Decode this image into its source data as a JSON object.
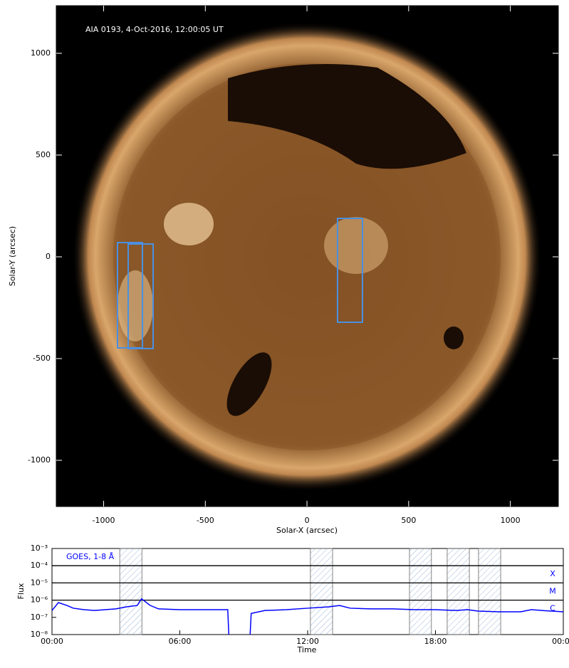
{
  "chart_data": [
    {
      "type": "image",
      "annotation": "AIA 0193, 4-Oct-2016, 12:00:05 UT",
      "xlabel": "Solar-X (arcsec)",
      "ylabel": "Solar-Y (arcsec)",
      "xlim": [
        -1233,
        1236
      ],
      "ylim": [
        -1227,
        1234
      ],
      "xticks": [
        -1000,
        -500,
        0,
        500,
        1000
      ],
      "yticks": [
        -1000,
        -500,
        0,
        500,
        1000
      ]
    },
    {
      "type": "line",
      "xlabel": "Time",
      "ylabel": "Flux",
      "ylog": true,
      "xlim": [
        0,
        24
      ],
      "ylim": [
        1e-08,
        0.001
      ],
      "xticks": [
        {
          "value": 0,
          "label": "00:00"
        },
        {
          "value": 6,
          "label": "06:00"
        },
        {
          "value": 12,
          "label": "12:00"
        },
        {
          "value": 18,
          "label": "18:00"
        },
        {
          "value": 24,
          "label": "00:00"
        }
      ],
      "yticks": [
        {
          "value": 1e-08,
          "label": "10⁻⁸"
        },
        {
          "value": 1e-07,
          "label": "10⁻⁷"
        },
        {
          "value": 1e-06,
          "label": "10⁻⁶"
        },
        {
          "value": 1e-05,
          "label": "10⁻⁵"
        },
        {
          "value": 0.0001,
          "label": "10⁻⁴"
        },
        {
          "value": 0.001,
          "label": "10⁻³"
        }
      ],
      "class_lines": [
        {
          "value": 0.0001,
          "label": "X"
        },
        {
          "value": 1e-05,
          "label": "M"
        },
        {
          "value": 1e-06,
          "label": "C"
        }
      ],
      "intervals": [
        [
          3.18,
          4.22
        ],
        [
          12.13,
          13.17
        ],
        [
          16.78,
          17.81
        ],
        [
          18.55,
          19.59
        ],
        [
          20.02,
          21.06
        ]
      ],
      "x": [
        0,
        0.3,
        0.7,
        1,
        1.5,
        2,
        2.5,
        3,
        3.5,
        4,
        4.2,
        4.6,
        5,
        6,
        7,
        8,
        8.25,
        8.3,
        8.35,
        9.3,
        9.35,
        10,
        11,
        12,
        13,
        13.5,
        14,
        15,
        16,
        17,
        18,
        19,
        19.5,
        20,
        21,
        22,
        22.5,
        23,
        24
      ],
      "series": [
        {
          "name": "GOES, 1-8 Å",
          "color": "#0000ff",
          "values": [
            2.5e-07,
            7.2e-07,
            4.9e-07,
            3.4e-07,
            2.8e-07,
            2.5e-07,
            2.8e-07,
            3.1e-07,
            4.1e-07,
            4.9e-07,
            1.2e-06,
            5e-07,
            3.1e-07,
            2.8e-07,
            2.8e-07,
            2.8e-07,
            2.8e-07,
            1e-08,
            null,
            1e-08,
            1.7e-07,
            2.5e-07,
            2.8e-07,
            3.4e-07,
            4.1e-07,
            4.9e-07,
            3.4e-07,
            3.1e-07,
            3.1e-07,
            2.8e-07,
            2.8e-07,
            2.5e-07,
            2.8e-07,
            2.3e-07,
            2.1e-07,
            2.1e-07,
            2.8e-07,
            2.5e-07,
            2.1e-07
          ]
        }
      ]
    }
  ]
}
